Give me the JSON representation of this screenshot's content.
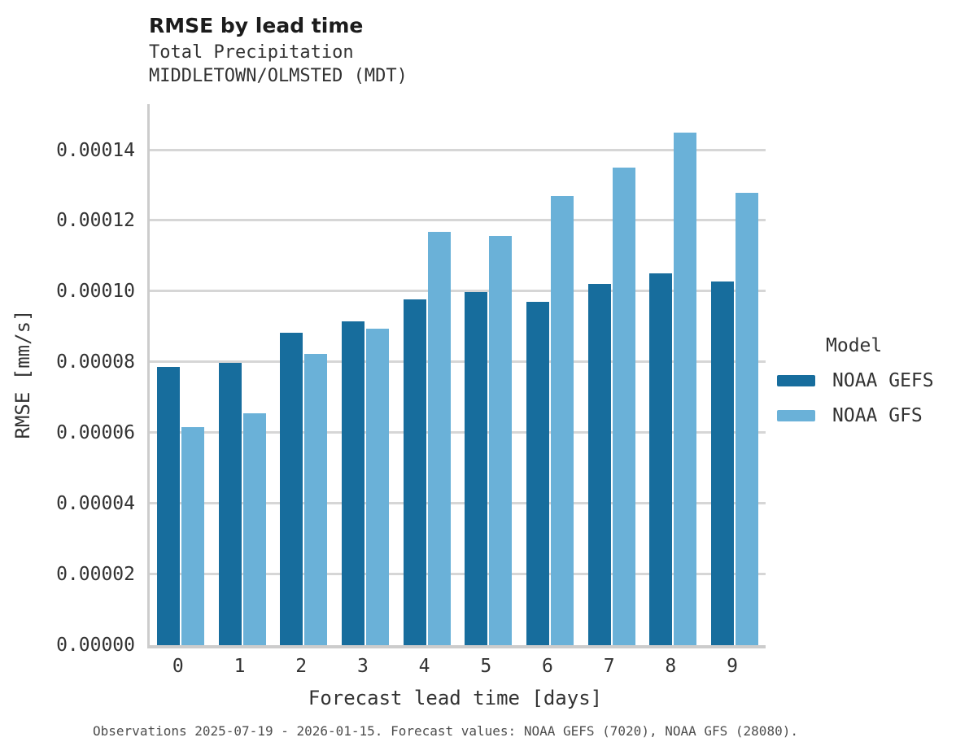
{
  "header": {
    "title": "RMSE by lead time",
    "subtitle1": "Total Precipitation",
    "subtitle2": "MIDDLETOWN/OLMSTED (MDT)"
  },
  "chart_data": {
    "type": "bar",
    "title": "RMSE by lead time",
    "subtitle": [
      "Total Precipitation",
      "MIDDLETOWN/OLMSTED (MDT)"
    ],
    "categories": [
      "0",
      "1",
      "2",
      "3",
      "4",
      "5",
      "6",
      "7",
      "8",
      "9"
    ],
    "series": [
      {
        "name": "NOAA GEFS",
        "color": "#176d9d",
        "values": [
          7.87e-05,
          7.99e-05,
          8.84e-05,
          9.16e-05,
          9.78e-05,
          9.99e-05,
          9.71e-05,
          0.0001021,
          0.0001051,
          0.0001028
        ]
      },
      {
        "name": "NOAA GFS",
        "color": "#6ab1d8",
        "values": [
          6.16e-05,
          6.56e-05,
          8.24e-05,
          8.94e-05,
          0.0001169,
          0.0001157,
          0.0001271,
          0.0001351,
          0.000145,
          0.000128
        ]
      }
    ],
    "xlabel": "Forecast lead time [days]",
    "ylabel": "RMSE [mm/s]",
    "ylim": [
      0,
      0.000153
    ],
    "yticks": [
      {
        "value": 0.0,
        "label": "0.00000"
      },
      {
        "value": 2e-05,
        "label": "0.00002"
      },
      {
        "value": 4e-05,
        "label": "0.00004"
      },
      {
        "value": 6e-05,
        "label": "0.00006"
      },
      {
        "value": 8e-05,
        "label": "0.00008"
      },
      {
        "value": 0.0001,
        "label": "0.00010"
      },
      {
        "value": 0.00012,
        "label": "0.00012"
      },
      {
        "value": 0.00014,
        "label": "0.00014"
      }
    ],
    "grid": "horizontal",
    "legend_position": "right"
  },
  "legend": {
    "title": "Model",
    "items": [
      {
        "label": "NOAA GEFS",
        "color": "#176d9d"
      },
      {
        "label": "NOAA GFS",
        "color": "#6ab1d8"
      }
    ]
  },
  "caption": "Observations 2025-07-19 - 2026-01-15. Forecast values: NOAA GEFS (7020), NOAA GFS (28080).",
  "colors": {
    "gridline": "#d6d6d6",
    "axis_spine": "#cccccc",
    "title_text": "#1c1c1c",
    "body_text": "#333333",
    "caption_text": "#4d4d4d",
    "background": "#ffffff"
  }
}
